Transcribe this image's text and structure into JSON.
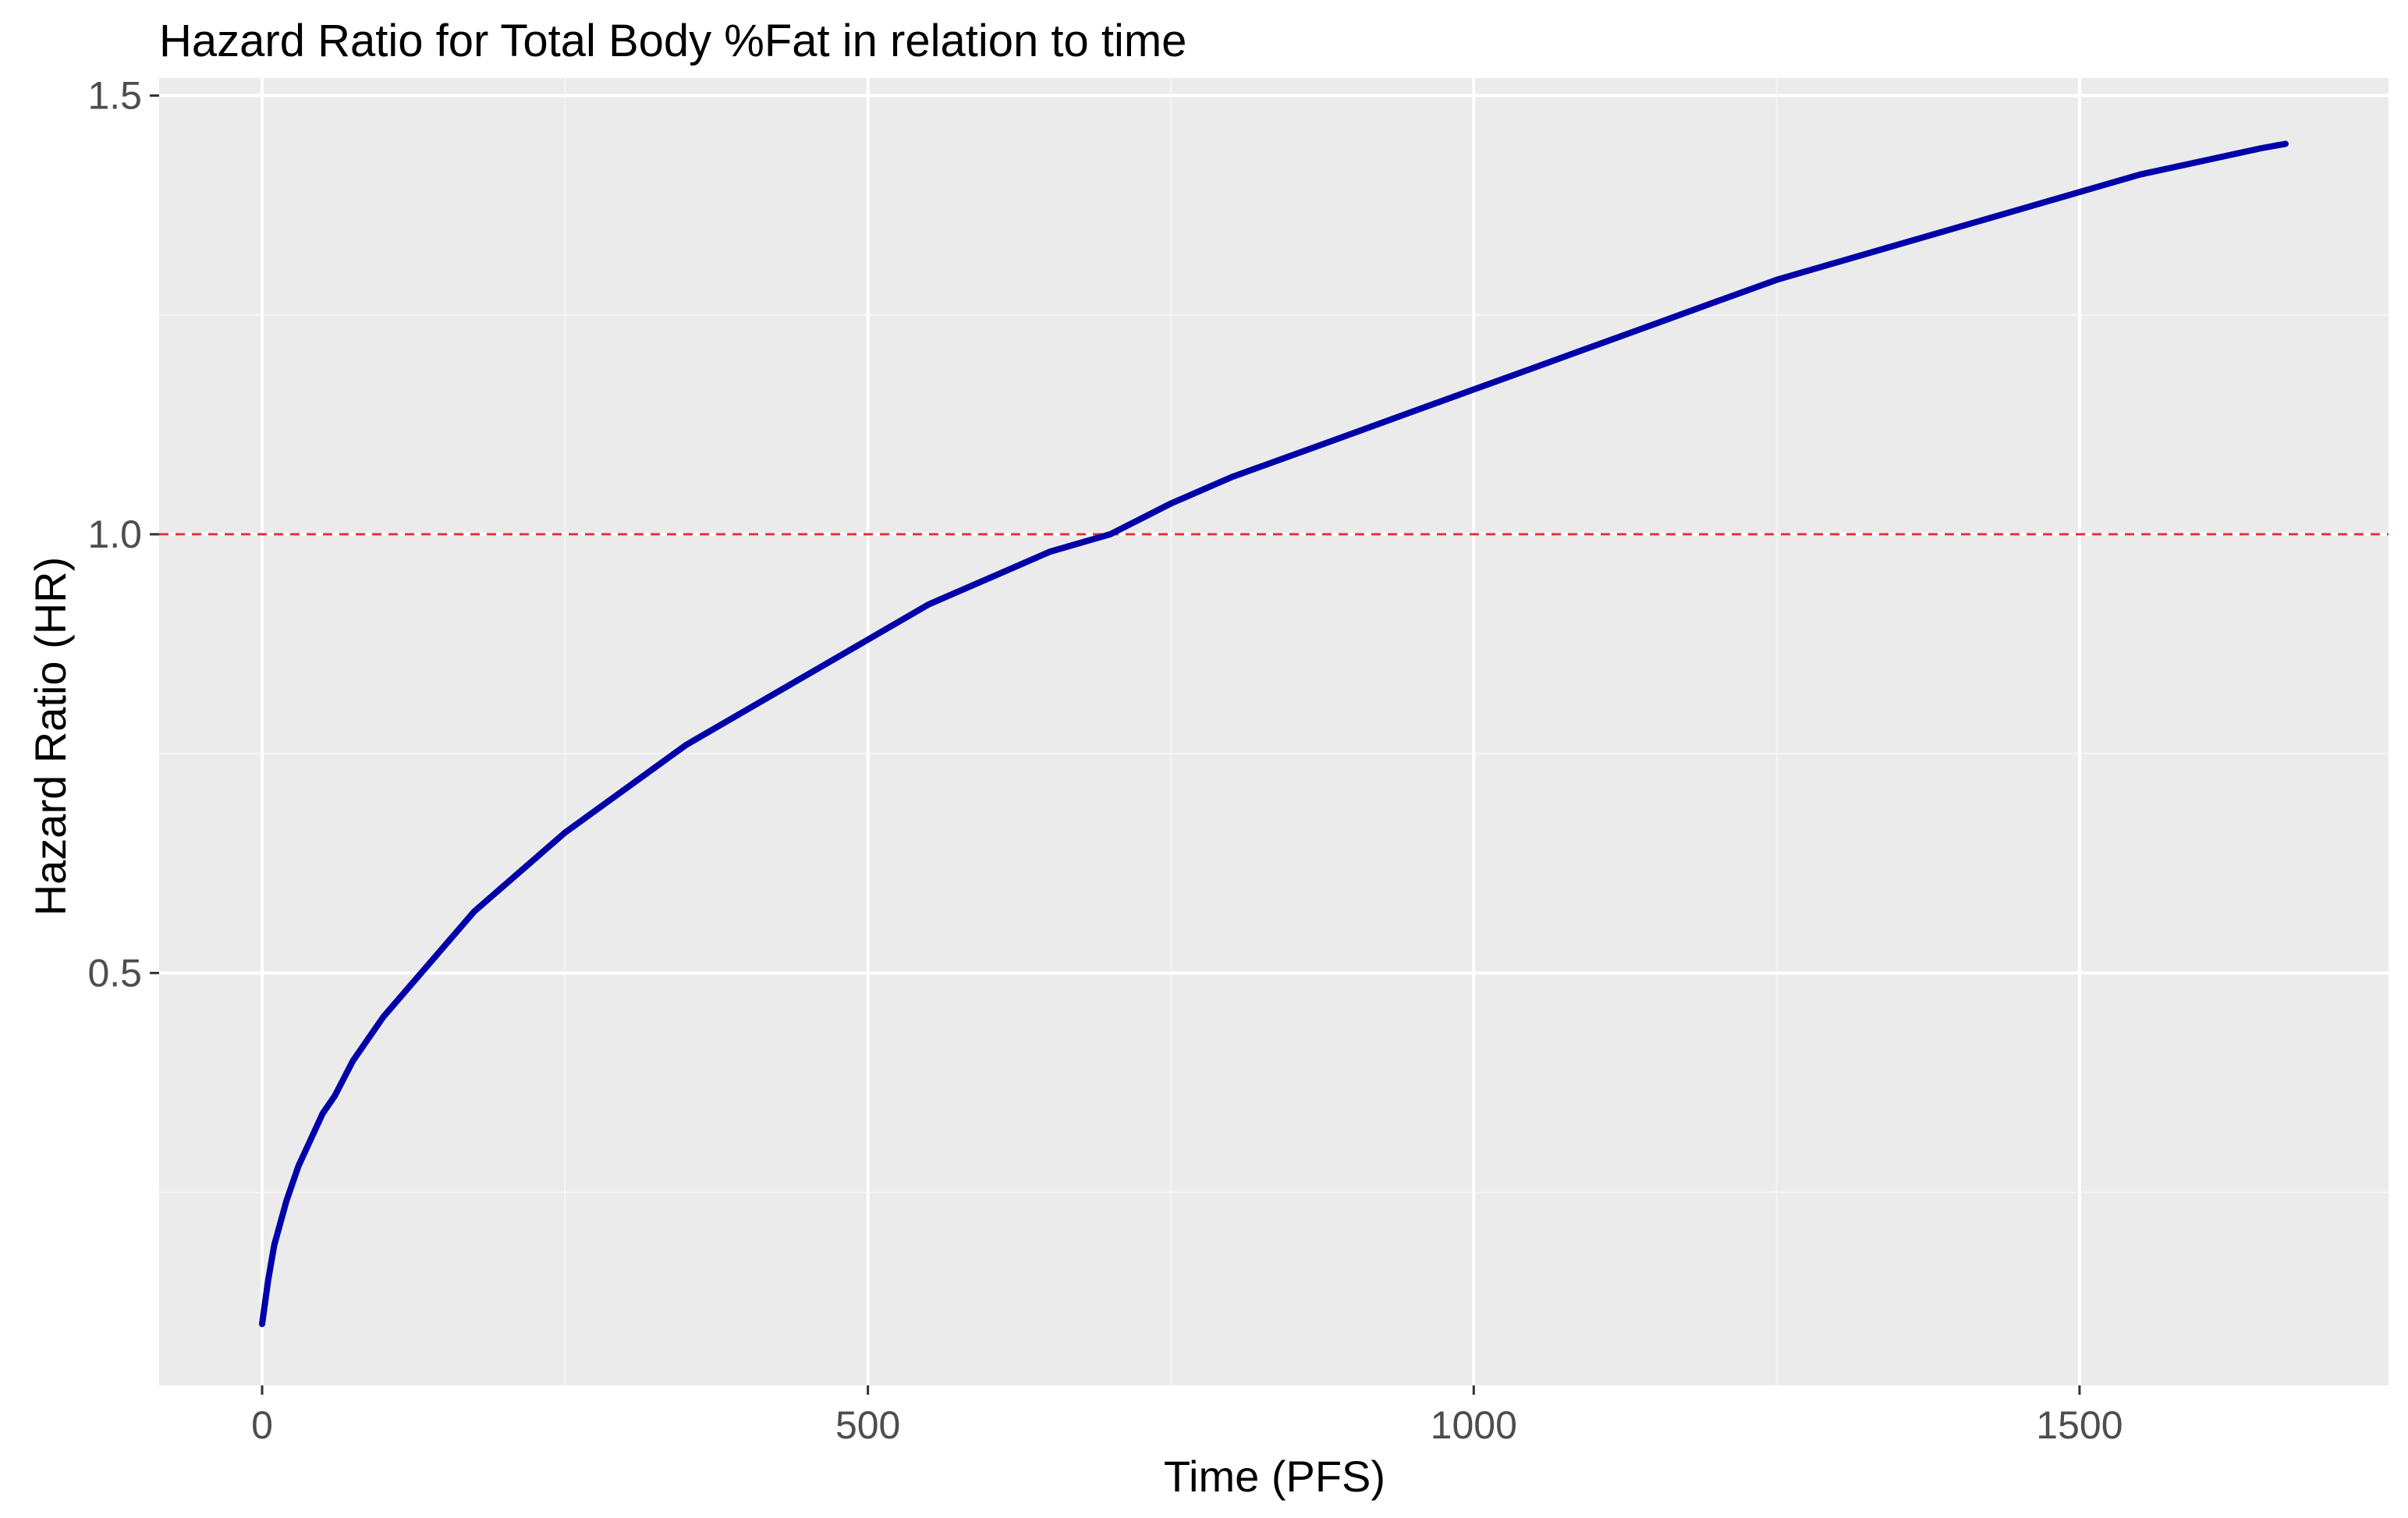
{
  "colors": {
    "panel_bg": "#EBEBEB",
    "grid_major": "#FFFFFF",
    "grid_minor": "#F5F5F5",
    "line": "#0000A8",
    "reference_line": "#E0303A",
    "text": "#000000",
    "tick_text": "#4D4D4D",
    "tick_mark": "#333333"
  },
  "chart_data": {
    "type": "line",
    "title": "Hazard Ratio for Total Body %Fat in relation to time",
    "xlabel": "Time (PFS)",
    "ylabel": "Hazard Ratio (HR)",
    "xlim": [
      -85,
      1755
    ],
    "ylim": [
      0.03,
      1.52
    ],
    "x_ticks": [
      0,
      500,
      1000,
      1500
    ],
    "x_tick_labels": [
      "0",
      "500",
      "1000",
      "1500"
    ],
    "y_ticks": [
      0.5,
      1.0,
      1.5
    ],
    "y_tick_labels": [
      "0.5",
      "1.0",
      "1.5"
    ],
    "x_minor_ticks": [
      250,
      750,
      1250
    ],
    "y_minor_ticks": [
      0.25,
      0.75,
      1.25
    ],
    "grid": true,
    "legend": "none",
    "reference_line": {
      "y": 1.0,
      "style": "dashed"
    },
    "series": [
      {
        "x": [
          0,
          5,
          10,
          20,
          30,
          40,
          50,
          60,
          75,
          100,
          125,
          150,
          175,
          200,
          250,
          300,
          350,
          400,
          450,
          500,
          550,
          600,
          650,
          700,
          750,
          800,
          850,
          900,
          950,
          1000,
          1050,
          1100,
          1150,
          1200,
          1250,
          1300,
          1350,
          1400,
          1450,
          1500,
          1550,
          1600,
          1650,
          1670
        ],
        "y": [
          0.1,
          0.15,
          0.19,
          0.24,
          0.28,
          0.31,
          0.34,
          0.36,
          0.4,
          0.45,
          0.49,
          0.53,
          0.57,
          0.6,
          0.66,
          0.71,
          0.76,
          0.8,
          0.84,
          0.88,
          0.92,
          0.95,
          0.98,
          1.0,
          1.035,
          1.065,
          1.09,
          1.115,
          1.14,
          1.165,
          1.19,
          1.215,
          1.24,
          1.265,
          1.29,
          1.31,
          1.33,
          1.35,
          1.37,
          1.39,
          1.41,
          1.425,
          1.44,
          1.445
        ]
      }
    ]
  }
}
